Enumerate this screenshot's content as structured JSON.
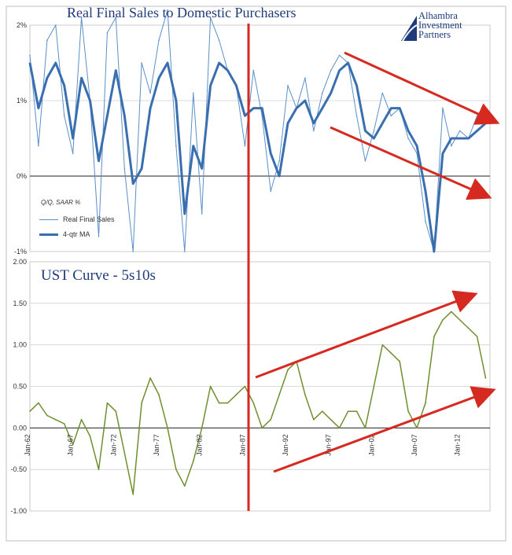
{
  "chart_data": [
    {
      "type": "line",
      "title": "Real Final Sales to Domestic Purchasers",
      "y_ticks": [
        "2%",
        "1%",
        "0%",
        "-1%"
      ],
      "ylim": [
        -1,
        2
      ],
      "grid": true,
      "legend_caption": "Q/Q, SAAR %",
      "legend_placement": "lower-left",
      "series": [
        {
          "name": "Real Final Sales",
          "color": "#5b8fc7",
          "x": [
            1962.0,
            1963.0,
            1964.0,
            1965.0,
            1966.0,
            1967.0,
            1968.0,
            1969.0,
            1970.0,
            1971.0,
            1972.0,
            1973.0,
            1974.0,
            1975.0,
            1976.0,
            1977.0,
            1978.0,
            1979.0,
            1980.0,
            1981.0,
            1982.0,
            1983.0,
            1984.0,
            1985.0,
            1986.0,
            1987.0,
            1988.0,
            1989.0,
            1990.0,
            1991.0,
            1992.0,
            1993.0,
            1994.0,
            1995.0,
            1996.0,
            1997.0,
            1998.0,
            1999.0,
            2000.0,
            2001.0,
            2002.0,
            2003.0,
            2004.0,
            2005.0,
            2006.0,
            2007.0,
            2008.0,
            2009.0,
            2010.0,
            2011.0,
            2012.0,
            2013.0,
            2014.0,
            2015.0
          ],
          "y": [
            1.6,
            0.4,
            1.8,
            2.0,
            0.8,
            0.3,
            2.1,
            1.0,
            -0.8,
            1.9,
            2.1,
            0.1,
            -1.0,
            1.5,
            1.1,
            1.8,
            2.2,
            0.4,
            -1.0,
            1.1,
            -0.5,
            2.1,
            1.8,
            1.4,
            1.2,
            0.4,
            1.4,
            0.8,
            -0.2,
            0.2,
            1.2,
            0.9,
            1.3,
            0.6,
            1.1,
            1.4,
            1.6,
            1.5,
            0.8,
            0.2,
            0.6,
            1.1,
            0.8,
            0.9,
            0.5,
            0.3,
            -0.6,
            -1.0,
            0.9,
            0.4,
            0.6,
            0.5,
            0.8,
            0.9
          ]
        },
        {
          "name": "4-qtr MA",
          "color": "#3a6faf",
          "x": [
            1962.0,
            1963.0,
            1964.0,
            1965.0,
            1966.0,
            1967.0,
            1968.0,
            1969.0,
            1970.0,
            1971.0,
            1972.0,
            1973.0,
            1974.0,
            1975.0,
            1976.0,
            1977.0,
            1978.0,
            1979.0,
            1980.0,
            1981.0,
            1982.0,
            1983.0,
            1984.0,
            1985.0,
            1986.0,
            1987.0,
            1988.0,
            1989.0,
            1990.0,
            1991.0,
            1992.0,
            1993.0,
            1994.0,
            1995.0,
            1996.0,
            1997.0,
            1998.0,
            1999.0,
            2000.0,
            2001.0,
            2002.0,
            2003.0,
            2004.0,
            2005.0,
            2006.0,
            2007.0,
            2008.0,
            2009.0,
            2010.0,
            2011.0,
            2012.0,
            2013.0,
            2014.0,
            2015.0
          ],
          "y": [
            1.5,
            0.9,
            1.3,
            1.5,
            1.2,
            0.5,
            1.3,
            1.0,
            0.2,
            0.8,
            1.4,
            0.8,
            -0.1,
            0.1,
            0.9,
            1.3,
            1.5,
            1.0,
            -0.5,
            0.4,
            0.1,
            1.2,
            1.5,
            1.4,
            1.2,
            0.8,
            0.9,
            0.9,
            0.3,
            0.0,
            0.7,
            0.9,
            1.0,
            0.7,
            0.9,
            1.1,
            1.4,
            1.5,
            1.2,
            0.6,
            0.5,
            0.7,
            0.9,
            0.9,
            0.6,
            0.4,
            -0.2,
            -1.0,
            0.3,
            0.5,
            0.5,
            0.5,
            0.6,
            0.7
          ]
        }
      ]
    },
    {
      "type": "line",
      "title": "UST Curve - 5s10s",
      "y_ticks": [
        "2.00",
        "1.50",
        "1.00",
        "0.50",
        "0.00",
        "-0.50",
        "-1.00"
      ],
      "x_ticks": [
        "Jan-62",
        "Jan-67",
        "Jan-72",
        "Jan-77",
        "Jan-82",
        "Jan-87",
        "Jan-92",
        "Jan-97",
        "Jan-02",
        "Jan-07",
        "Jan-12"
      ],
      "ylim": [
        -1,
        2
      ],
      "grid": true,
      "series": [
        {
          "color": "#6f8f2e",
          "x": [
            1962.0,
            1963.0,
            1964.0,
            1965.0,
            1966.0,
            1967.0,
            1968.0,
            1969.0,
            1970.0,
            1971.0,
            1972.0,
            1973.0,
            1974.0,
            1975.0,
            1976.0,
            1977.0,
            1978.0,
            1979.0,
            1980.0,
            1981.0,
            1982.0,
            1983.0,
            1984.0,
            1985.0,
            1986.0,
            1987.0,
            1988.0,
            1989.0,
            1990.0,
            1991.0,
            1992.0,
            1993.0,
            1994.0,
            1995.0,
            1996.0,
            1997.0,
            1998.0,
            1999.0,
            2000.0,
            2001.0,
            2002.0,
            2003.0,
            2004.0,
            2005.0,
            2006.0,
            2007.0,
            2008.0,
            2009.0,
            2010.0,
            2011.0,
            2012.0,
            2013.0,
            2014.0,
            2015.0
          ],
          "y": [
            0.2,
            0.3,
            0.15,
            0.1,
            0.05,
            -0.2,
            0.1,
            -0.1,
            -0.5,
            0.3,
            0.2,
            -0.3,
            -0.8,
            0.3,
            0.6,
            0.4,
            0.0,
            -0.5,
            -0.7,
            -0.4,
            0.0,
            0.5,
            0.3,
            0.3,
            0.4,
            0.5,
            0.3,
            0.0,
            0.1,
            0.4,
            0.7,
            0.8,
            0.4,
            0.1,
            0.2,
            0.1,
            0.0,
            0.2,
            0.2,
            0.0,
            0.5,
            1.0,
            0.9,
            0.8,
            0.2,
            0.0,
            0.3,
            1.1,
            1.3,
            1.4,
            1.3,
            1.2,
            1.1,
            0.6
          ]
        }
      ]
    }
  ],
  "annotations": {
    "logo_lines": [
      "Alhambra",
      "Investment",
      "Partners"
    ]
  }
}
